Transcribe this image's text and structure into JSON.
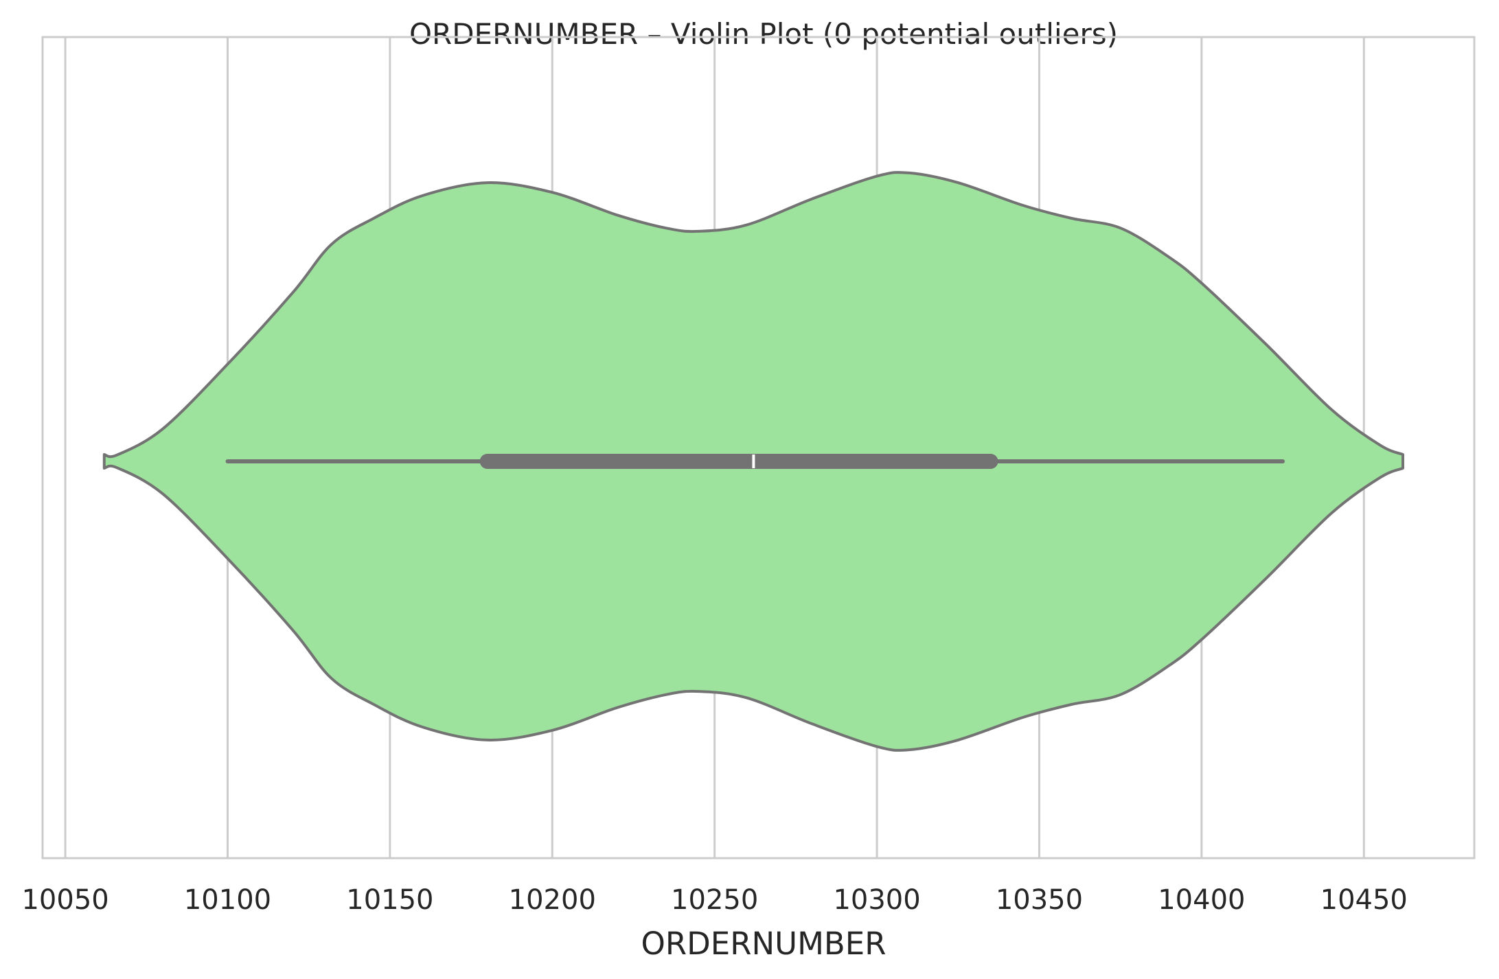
{
  "chart_data": {
    "type": "violin",
    "orientation": "horizontal",
    "title": "ORDERNUMBER – Violin Plot (0 potential outliers)",
    "xlabel": "ORDERNUMBER",
    "ylabel": "",
    "xlim": [
      10043,
      10484
    ],
    "xticks": [
      10050,
      10100,
      10150,
      10200,
      10250,
      10300,
      10350,
      10400,
      10450
    ],
    "grid": "vertical",
    "colors": {
      "fill": "#9de29d",
      "edge": "#737373",
      "grid": "#cccccc",
      "median": "#ffffff"
    },
    "violin": {
      "min": 10100,
      "q1": 10180,
      "median": 10262,
      "q3": 10335,
      "max": 10425,
      "kde_extent": [
        10062,
        10462
      ],
      "density": [
        [
          10062,
          0.0
        ],
        [
          10066,
          0.02
        ],
        [
          10080,
          0.1
        ],
        [
          10100,
          0.3
        ],
        [
          10120,
          0.52
        ],
        [
          10132,
          0.67
        ],
        [
          10145,
          0.75
        ],
        [
          10160,
          0.82
        ],
        [
          10180,
          0.86
        ],
        [
          10200,
          0.83
        ],
        [
          10220,
          0.76
        ],
        [
          10235,
          0.72
        ],
        [
          10245,
          0.71
        ],
        [
          10260,
          0.73
        ],
        [
          10280,
          0.81
        ],
        [
          10300,
          0.88
        ],
        [
          10310,
          0.89
        ],
        [
          10325,
          0.86
        ],
        [
          10345,
          0.79
        ],
        [
          10360,
          0.75
        ],
        [
          10375,
          0.72
        ],
        [
          10390,
          0.63
        ],
        [
          10400,
          0.55
        ],
        [
          10420,
          0.36
        ],
        [
          10440,
          0.16
        ],
        [
          10455,
          0.05
        ],
        [
          10462,
          0.0
        ]
      ]
    }
  }
}
